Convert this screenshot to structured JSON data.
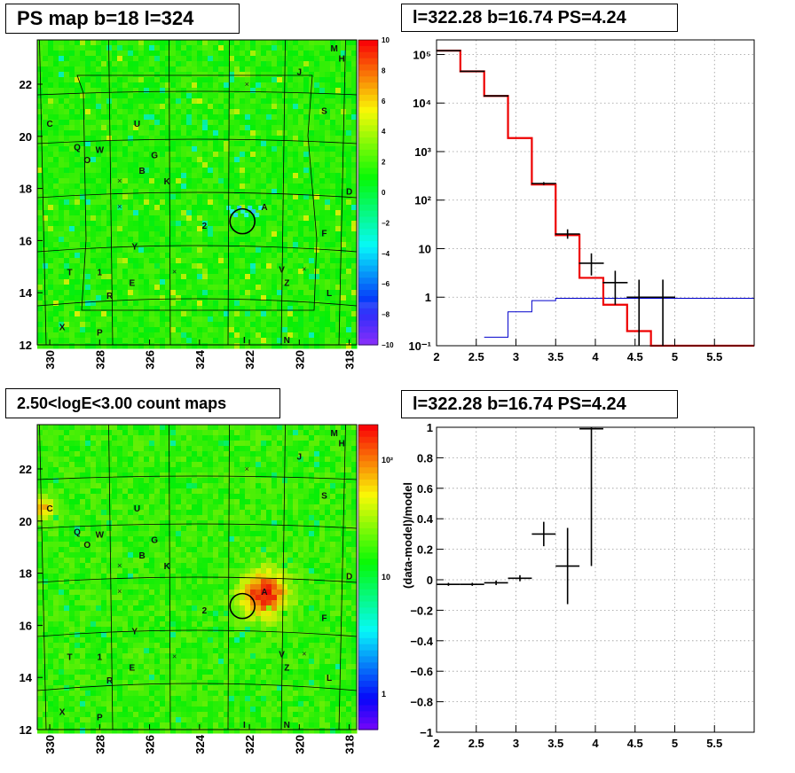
{
  "titles": {
    "ps_map": "PS map b=18 l=324",
    "spectrum": "l=322.28 b=16.74 PS=4.24",
    "count_map": "2.50<logE<3.00 count maps",
    "residual": "l=322.28 b=16.74 PS=4.24"
  },
  "chart_data": [
    {
      "type": "heatmap",
      "title": "PS map b=18 l=324",
      "x_ticks": [
        "330",
        "328",
        "326",
        "324",
        "322",
        "320",
        "318"
      ],
      "x_range": [
        330.5,
        317.7
      ],
      "y_ticks": [
        "12",
        "14",
        "16",
        "18",
        "20",
        "22"
      ],
      "y_range": [
        12,
        23.7
      ],
      "colorbar": {
        "ticks": [
          "10",
          "8",
          "6",
          "4",
          "2",
          "0",
          "−2",
          "−4",
          "−6",
          "−8",
          "−10"
        ],
        "range": [
          -10,
          10
        ]
      },
      "markers": [
        {
          "label": "M",
          "l": 318.6,
          "b": 23.4
        },
        {
          "label": "H",
          "l": 318.3,
          "b": 23.0
        },
        {
          "label": "J",
          "l": 320.0,
          "b": 22.5
        },
        {
          "label": "S",
          "l": 319.0,
          "b": 21.0
        },
        {
          "label": "C",
          "l": 330.0,
          "b": 20.5
        },
        {
          "label": "U",
          "l": 326.5,
          "b": 20.5
        },
        {
          "label": "Q",
          "l": 328.9,
          "b": 19.6
        },
        {
          "label": "W",
          "l": 328.0,
          "b": 19.5
        },
        {
          "label": "O",
          "l": 328.5,
          "b": 19.1
        },
        {
          "label": "G",
          "l": 325.8,
          "b": 19.3
        },
        {
          "label": "B",
          "l": 326.3,
          "b": 18.7
        },
        {
          "label": "K",
          "l": 325.3,
          "b": 18.3
        },
        {
          "label": "D",
          "l": 318.0,
          "b": 17.9
        },
        {
          "label": "A",
          "l": 321.4,
          "b": 17.3
        },
        {
          "label": "2",
          "l": 323.8,
          "b": 16.6
        },
        {
          "label": "F",
          "l": 319.0,
          "b": 16.3
        },
        {
          "label": "Y",
          "l": 326.6,
          "b": 15.8
        },
        {
          "label": "T",
          "l": 329.2,
          "b": 14.8
        },
        {
          "label": "1",
          "l": 328.0,
          "b": 14.8
        },
        {
          "label": "E",
          "l": 326.7,
          "b": 14.4
        },
        {
          "label": "V",
          "l": 320.7,
          "b": 14.9
        },
        {
          "label": "Z",
          "l": 320.5,
          "b": 14.4
        },
        {
          "label": "L",
          "l": 318.8,
          "b": 14.0
        },
        {
          "label": "R",
          "l": 327.6,
          "b": 13.9
        },
        {
          "label": "X",
          "l": 329.5,
          "b": 12.7
        },
        {
          "label": "P",
          "l": 328.0,
          "b": 12.5
        },
        {
          "label": "I",
          "l": 322.2,
          "b": 12.2
        },
        {
          "label": "N",
          "l": 320.5,
          "b": 12.2
        }
      ],
      "source_circle": {
        "l": 322.28,
        "b": 16.74
      }
    },
    {
      "type": "line",
      "title": "l=322.28 b=16.74 PS=4.24",
      "x_ticks": [
        "2",
        "2.5",
        "3",
        "3.5",
        "4",
        "4.5",
        "5",
        "5.5"
      ],
      "x_range": [
        2,
        6
      ],
      "y_scale": "log",
      "y_ticks": [
        "10⁻¹",
        "1",
        "10",
        "10²",
        "10³",
        "10⁴",
        "10⁵"
      ],
      "y_range": [
        0.1,
        200000
      ],
      "grid": true,
      "model_red": [
        {
          "x0": 2.0,
          "x1": 2.3,
          "y": 120000
        },
        {
          "x0": 2.3,
          "x1": 2.6,
          "y": 45000
        },
        {
          "x0": 2.6,
          "x1": 2.9,
          "y": 14000
        },
        {
          "x0": 2.9,
          "x1": 3.2,
          "y": 1900
        },
        {
          "x0": 3.2,
          "x1": 3.5,
          "y": 210
        },
        {
          "x0": 3.5,
          "x1": 3.8,
          "y": 19
        },
        {
          "x0": 3.8,
          "x1": 4.1,
          "y": 2.5
        },
        {
          "x0": 4.1,
          "x1": 4.4,
          "y": 0.7
        },
        {
          "x0": 4.4,
          "x1": 4.7,
          "y": 0.2
        },
        {
          "x0": 4.7,
          "x1": 6.0,
          "y": 0.1
        }
      ],
      "model_blue": [
        {
          "x0": 2.6,
          "x1": 2.9,
          "y": 0.15
        },
        {
          "x0": 2.9,
          "x1": 3.2,
          "y": 0.5
        },
        {
          "x0": 3.2,
          "x1": 3.5,
          "y": 0.85
        },
        {
          "x0": 3.5,
          "x1": 6.0,
          "y": 0.95
        }
      ],
      "data_points": [
        {
          "x": 2.15,
          "y": 120000,
          "lo": 118000,
          "hi": 122000
        },
        {
          "x": 2.45,
          "y": 45000,
          "lo": 44000,
          "hi": 46000
        },
        {
          "x": 2.75,
          "y": 14000,
          "lo": 13700,
          "hi": 14300
        },
        {
          "x": 3.35,
          "y": 220,
          "lo": 205,
          "hi": 235
        },
        {
          "x": 3.65,
          "y": 20,
          "lo": 16,
          "hi": 25
        },
        {
          "x": 3.95,
          "y": 5,
          "lo": 2.8,
          "hi": 8
        },
        {
          "x": 4.25,
          "y": 2,
          "lo": 0.7,
          "hi": 3.5
        },
        {
          "x": 4.55,
          "y": 1,
          "lo": 0.1,
          "hi": 2.3
        },
        {
          "x": 4.85,
          "y": 1,
          "lo": 0.1,
          "hi": 2.3
        }
      ]
    },
    {
      "type": "heatmap",
      "title": "2.50<logE<3.00 count maps",
      "x_ticks": [
        "330",
        "328",
        "326",
        "324",
        "322",
        "320",
        "318"
      ],
      "x_range": [
        330.5,
        317.7
      ],
      "y_ticks": [
        "12",
        "14",
        "16",
        "18",
        "20",
        "22"
      ],
      "y_range": [
        12,
        23.7
      ],
      "colorbar": {
        "scale": "log",
        "ticks": [
          "10²",
          "10",
          "1"
        ],
        "range": [
          0.5,
          200
        ]
      },
      "hotspot": {
        "l": 321.5,
        "b": 17.3
      },
      "edge_source": {
        "l": 330.4,
        "b": 20.6
      }
    },
    {
      "type": "scatter",
      "title": "l=322.28 b=16.74 PS=4.24",
      "ylabel": "(data-model)/model",
      "x_ticks": [
        "2",
        "2.5",
        "3",
        "3.5",
        "4",
        "4.5",
        "5",
        "5.5"
      ],
      "x_range": [
        2,
        6
      ],
      "y_ticks": [
        "−1",
        "−0.8",
        "−0.6",
        "−0.4",
        "−0.2",
        "0",
        "0.2",
        "0.4",
        "0.6",
        "0.8",
        "1"
      ],
      "y_range": [
        -1,
        1
      ],
      "grid": true,
      "points": [
        {
          "x": 2.15,
          "y": -0.03,
          "xerr": 0.15,
          "yerr": 0.01
        },
        {
          "x": 2.45,
          "y": -0.03,
          "xerr": 0.15,
          "yerr": 0.01
        },
        {
          "x": 2.75,
          "y": -0.02,
          "xerr": 0.15,
          "yerr": 0.015
        },
        {
          "x": 3.05,
          "y": 0.01,
          "xerr": 0.15,
          "yerr": 0.02
        },
        {
          "x": 3.35,
          "y": 0.3,
          "xerr": 0.15,
          "yerr": 0.08
        },
        {
          "x": 3.65,
          "y": 0.09,
          "xerr": 0.15,
          "yerr": 0.25
        },
        {
          "x": 3.95,
          "y": 0.99,
          "xerr": 0.15,
          "yerr": 0.9
        }
      ]
    }
  ]
}
